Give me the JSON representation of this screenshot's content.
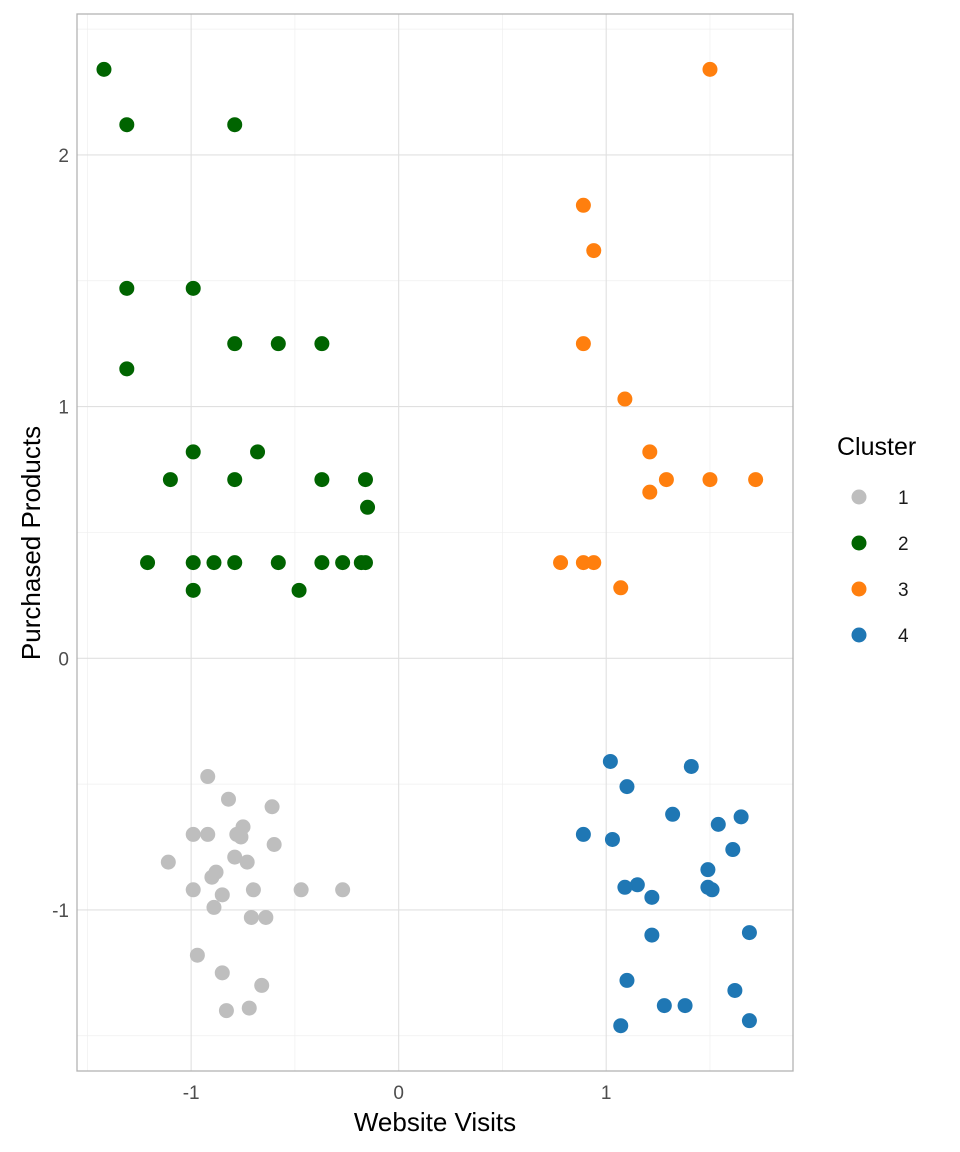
{
  "chart_data": {
    "type": "scatter",
    "xlabel": "Website Visits",
    "ylabel": "Purchased Products",
    "xlim": [
      -1.55,
      1.9
    ],
    "ylim": [
      -1.64,
      2.56
    ],
    "xticks": [
      -1,
      0,
      1
    ],
    "yticks": [
      -1,
      0,
      1,
      2
    ],
    "x_tick_labels": [
      "-1",
      "0",
      "1"
    ],
    "y_tick_labels": [
      "-1",
      "0",
      "1",
      "2"
    ],
    "legend": {
      "title": "Cluster",
      "position": "right",
      "entries": [
        {
          "label": "1",
          "color": "#bebebe"
        },
        {
          "label": "2",
          "color": "#006400"
        },
        {
          "label": "3",
          "color": "#ff7f0e"
        },
        {
          "label": "4",
          "color": "#1f77b4"
        }
      ]
    },
    "series": [
      {
        "name": "1",
        "color": "#bebebe",
        "points": [
          [
            -0.92,
            -0.47
          ],
          [
            -0.82,
            -0.56
          ],
          [
            -0.61,
            -0.59
          ],
          [
            -0.75,
            -0.67
          ],
          [
            -0.99,
            -0.7
          ],
          [
            -0.92,
            -0.7
          ],
          [
            -0.78,
            -0.7
          ],
          [
            -0.76,
            -0.71
          ],
          [
            -0.6,
            -0.74
          ],
          [
            -0.79,
            -0.79
          ],
          [
            -1.11,
            -0.81
          ],
          [
            -0.73,
            -0.81
          ],
          [
            -0.88,
            -0.85
          ],
          [
            -0.9,
            -0.87
          ],
          [
            -0.99,
            -0.92
          ],
          [
            -0.7,
            -0.92
          ],
          [
            -0.47,
            -0.92
          ],
          [
            -0.27,
            -0.92
          ],
          [
            -0.85,
            -0.94
          ],
          [
            -0.89,
            -0.99
          ],
          [
            -0.71,
            -1.03
          ],
          [
            -0.64,
            -1.03
          ],
          [
            -0.97,
            -1.18
          ],
          [
            -0.85,
            -1.25
          ],
          [
            -0.66,
            -1.3
          ],
          [
            -0.83,
            -1.4
          ],
          [
            -0.72,
            -1.39
          ]
        ]
      },
      {
        "name": "2",
        "color": "#006400",
        "points": [
          [
            -1.42,
            2.34
          ],
          [
            -1.31,
            2.12
          ],
          [
            -0.79,
            2.12
          ],
          [
            -1.31,
            1.47
          ],
          [
            -0.99,
            1.47
          ],
          [
            -0.79,
            1.25
          ],
          [
            -0.58,
            1.25
          ],
          [
            -0.37,
            1.25
          ],
          [
            -1.31,
            1.15
          ],
          [
            -0.99,
            0.82
          ],
          [
            -0.68,
            0.82
          ],
          [
            -1.1,
            0.71
          ],
          [
            -0.79,
            0.71
          ],
          [
            -0.37,
            0.71
          ],
          [
            -0.16,
            0.71
          ],
          [
            -0.15,
            0.6
          ],
          [
            -1.21,
            0.38
          ],
          [
            -0.99,
            0.38
          ],
          [
            -0.89,
            0.38
          ],
          [
            -0.79,
            0.38
          ],
          [
            -0.58,
            0.38
          ],
          [
            -0.37,
            0.38
          ],
          [
            -0.27,
            0.38
          ],
          [
            -0.18,
            0.38
          ],
          [
            -0.16,
            0.38
          ],
          [
            -0.99,
            0.27
          ],
          [
            -0.48,
            0.27
          ]
        ]
      },
      {
        "name": "3",
        "color": "#ff7f0e",
        "points": [
          [
            1.5,
            2.34
          ],
          [
            0.89,
            1.8
          ],
          [
            0.94,
            1.62
          ],
          [
            0.89,
            1.25
          ],
          [
            1.09,
            1.03
          ],
          [
            1.21,
            0.82
          ],
          [
            1.29,
            0.71
          ],
          [
            1.5,
            0.71
          ],
          [
            1.72,
            0.71
          ],
          [
            1.21,
            0.66
          ],
          [
            0.78,
            0.38
          ],
          [
            0.89,
            0.38
          ],
          [
            0.94,
            0.38
          ],
          [
            1.07,
            0.28
          ]
        ]
      },
      {
        "name": "4",
        "color": "#1f77b4",
        "points": [
          [
            1.02,
            -0.41
          ],
          [
            1.41,
            -0.43
          ],
          [
            1.1,
            -0.51
          ],
          [
            1.32,
            -0.62
          ],
          [
            1.65,
            -0.63
          ],
          [
            1.54,
            -0.66
          ],
          [
            0.89,
            -0.7
          ],
          [
            1.03,
            -0.72
          ],
          [
            1.61,
            -0.76
          ],
          [
            1.49,
            -0.84
          ],
          [
            1.15,
            -0.9
          ],
          [
            1.09,
            -0.91
          ],
          [
            1.49,
            -0.91
          ],
          [
            1.51,
            -0.92
          ],
          [
            1.22,
            -0.95
          ],
          [
            1.22,
            -1.1
          ],
          [
            1.69,
            -1.09
          ],
          [
            1.1,
            -1.28
          ],
          [
            1.28,
            -1.38
          ],
          [
            1.38,
            -1.38
          ],
          [
            1.62,
            -1.32
          ],
          [
            1.07,
            -1.46
          ],
          [
            1.69,
            -1.44
          ]
        ]
      }
    ]
  }
}
